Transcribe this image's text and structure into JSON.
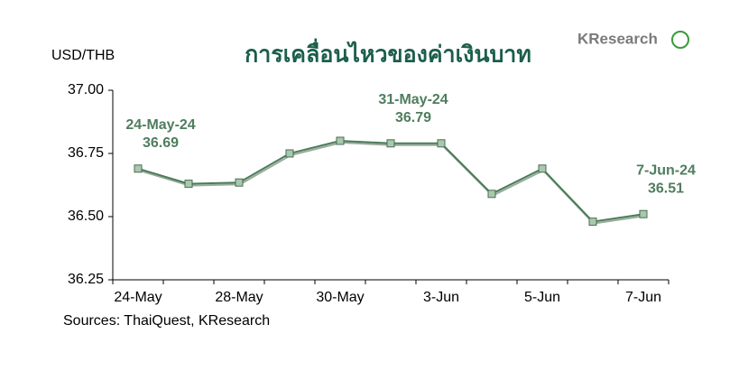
{
  "chart_data": {
    "type": "line",
    "title": "การเคลื่อนไหวของค่าเงินบาท",
    "y_axis_label": "USD/THB",
    "logo": "KResearch",
    "source": "Sources: ThaiQuest, KResearch",
    "categories": [
      "24-May",
      null,
      "28-May",
      null,
      "30-May",
      null,
      "3-Jun",
      null,
      "5-Jun",
      null,
      "7-Jun"
    ],
    "series": [
      {
        "name": "USD/THB",
        "color": "#4a7c5a",
        "values": [
          36.69,
          36.63,
          36.635,
          36.75,
          36.8,
          36.79,
          36.79,
          36.59,
          36.69,
          36.48,
          36.51
        ],
        "value_labels": [
          "36.69",
          null,
          null,
          null,
          null,
          "36.79",
          null,
          null,
          null,
          null,
          "36.51"
        ],
        "label_dates": [
          "24-May-24",
          null,
          null,
          null,
          null,
          "31-May-24",
          null,
          null,
          null,
          null,
          "7-Jun-24"
        ]
      }
    ],
    "ylim": [
      36.25,
      37.0
    ],
    "yticks": [
      36.25,
      {
        "value": 36.5,
        "label": "36.50"
      },
      36.75,
      {
        "value": 37.0,
        "label": "37.00"
      }
    ],
    "grid": false
  }
}
